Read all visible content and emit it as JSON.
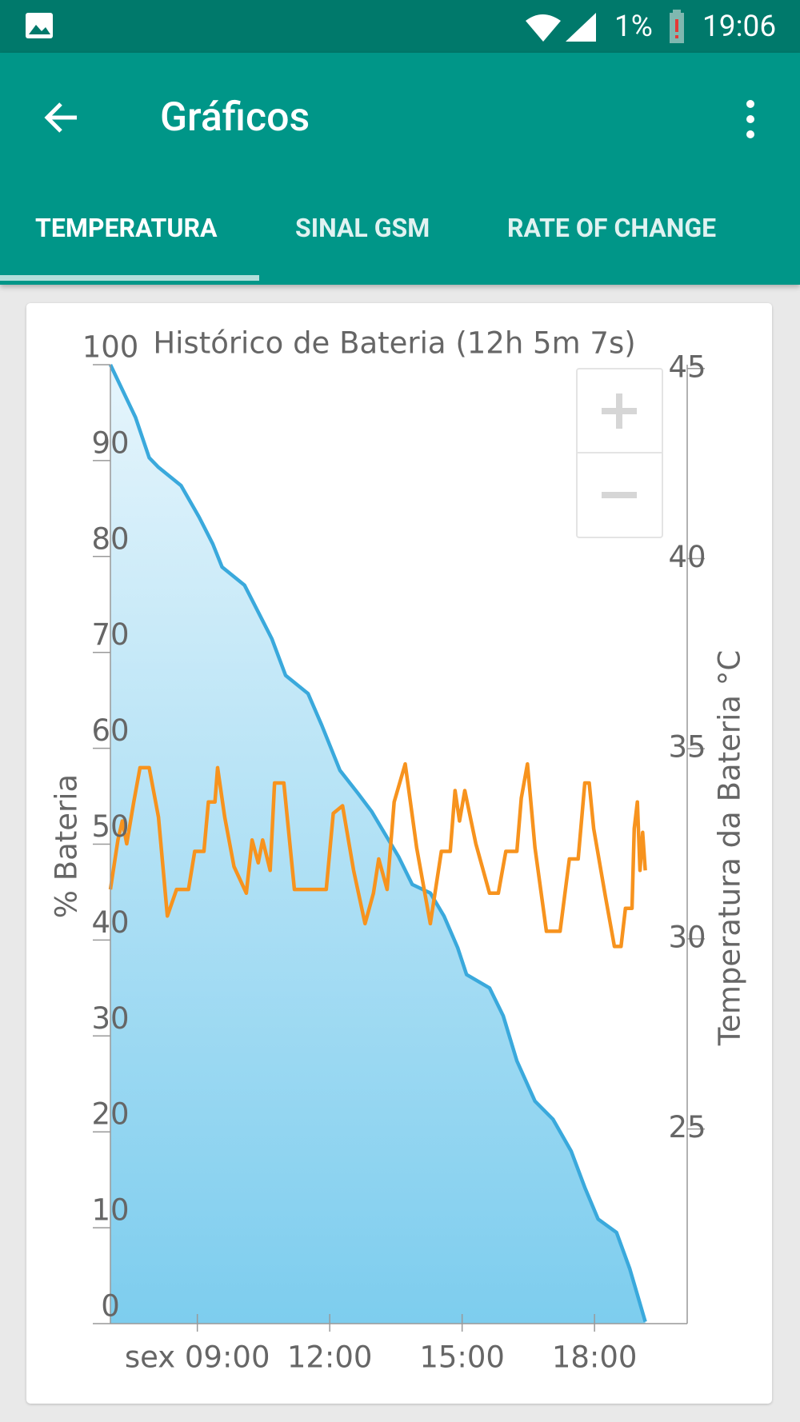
{
  "status_bar": {
    "battery": "1%",
    "time": "19:06"
  },
  "app_bar": {
    "title": "Gráficos"
  },
  "tabs": [
    "TEMPERATURA",
    "SINAL GSM",
    "RATE OF CHANGE"
  ],
  "chart_data": {
    "type": "line",
    "title": "Histórico de Bateria (12h 5m 7s)",
    "y_label": "% Bateria",
    "y2_label": "Temperatura da Bateria °C",
    "xlim": [
      7.03,
      20.1
    ],
    "xticks": [
      {
        "value": 9,
        "label": "sex 09:00"
      },
      {
        "value": 12,
        "label": "12:00"
      },
      {
        "value": 15,
        "label": "15:00"
      },
      {
        "value": 18,
        "label": "18:00"
      }
    ],
    "ylim": [
      0,
      100
    ],
    "yticks": [
      0,
      10,
      20,
      30,
      40,
      50,
      60,
      70,
      80,
      90,
      100
    ],
    "y2lim": [
      19.88,
      45.1
    ],
    "y2ticks": [
      25,
      30,
      35,
      40,
      45
    ],
    "series": [
      {
        "color": "#3aa9dc",
        "fill": true,
        "x": [
          7.03,
          7.6,
          7.91,
          8.12,
          8.63,
          9.04,
          9.35,
          9.56,
          10.07,
          10.38,
          10.69,
          11.0,
          11.51,
          11.82,
          12.23,
          12.64,
          12.95,
          13.26,
          13.56,
          13.87,
          14.28,
          14.59,
          14.9,
          15.1,
          15.62,
          15.93,
          16.24,
          16.65,
          17.06,
          17.47,
          17.78,
          18.08,
          18.5,
          18.8,
          19.01,
          19.15
        ],
        "values": [
          100,
          94.5,
          90.3,
          89.3,
          87.4,
          84.1,
          81.3,
          78.9,
          77,
          74.2,
          71.4,
          67.6,
          65.7,
          62.4,
          57.7,
          55.3,
          53.4,
          51,
          48.7,
          45.8,
          44.9,
          42.5,
          39.2,
          36.4,
          35,
          32.1,
          27.4,
          23.2,
          21.3,
          18,
          14.2,
          10.9,
          9.5,
          5.7,
          2.4,
          0.2
        ]
      },
      {
        "color": "#f7931e",
        "axis": "y2",
        "x": [
          7.03,
          7.2,
          7.3,
          7.4,
          7.56,
          7.7,
          7.91,
          8.12,
          8.32,
          8.53,
          8.8,
          8.94,
          9.15,
          9.25,
          9.4,
          9.46,
          9.62,
          9.83,
          10.11,
          10.24,
          10.38,
          10.48,
          10.65,
          10.75,
          10.96,
          11.2,
          11.92,
          12.08,
          12.29,
          12.54,
          12.8,
          12.99,
          13.11,
          13.3,
          13.46,
          13.71,
          13.97,
          14.28,
          14.53,
          14.73,
          14.84,
          14.94,
          15.06,
          15.31,
          15.62,
          15.82,
          15.99,
          16.24,
          16.34,
          16.48,
          16.65,
          16.91,
          17.22,
          17.43,
          17.63,
          17.78,
          17.88,
          17.98,
          18.25,
          18.45,
          18.6,
          18.7,
          18.85,
          18.9,
          18.97,
          19.03,
          19.09,
          19.15
        ],
        "values": [
          31.3,
          32.6,
          33.1,
          32.5,
          33.6,
          34.5,
          34.5,
          33.2,
          30.6,
          31.3,
          31.3,
          32.3,
          32.3,
          33.6,
          33.6,
          34.5,
          33.2,
          31.9,
          31.2,
          32.6,
          32,
          32.6,
          31.8,
          34.1,
          34.1,
          31.3,
          31.3,
          33.3,
          33.5,
          31.8,
          30.4,
          31.2,
          32.1,
          31.3,
          33.6,
          34.6,
          32.4,
          30.4,
          32.3,
          32.3,
          33.9,
          33.1,
          33.9,
          32.5,
          31.2,
          31.2,
          32.3,
          32.3,
          33.7,
          34.6,
          32.4,
          30.2,
          30.2,
          32.1,
          32.1,
          34.1,
          34.1,
          32.9,
          31.1,
          29.8,
          29.8,
          30.8,
          30.8,
          32.9,
          33.6,
          31.8,
          32.8,
          31.8
        ]
      }
    ]
  }
}
